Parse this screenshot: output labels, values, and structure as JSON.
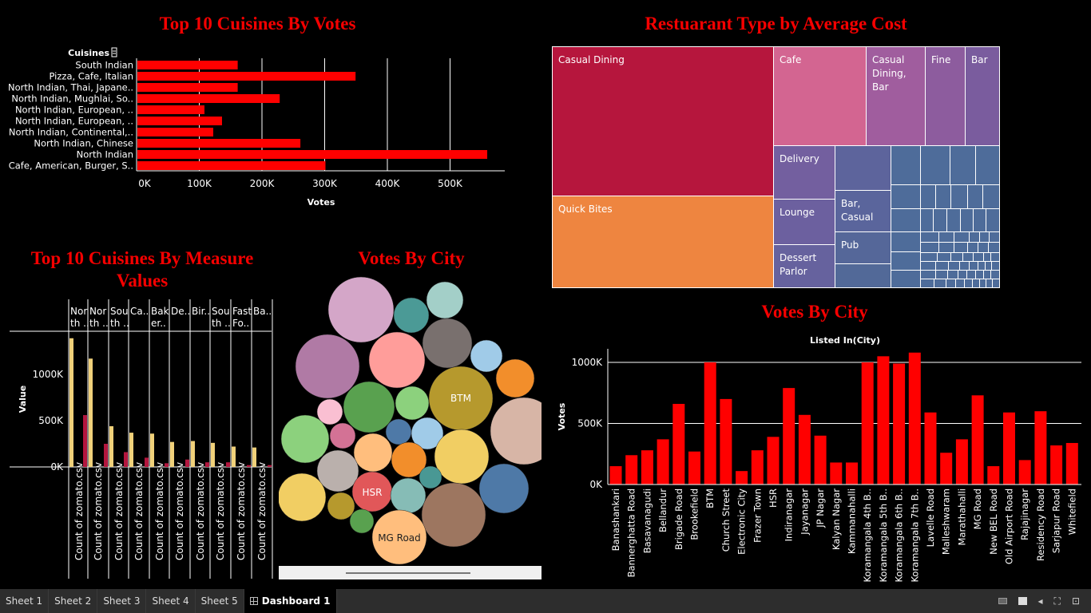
{
  "colors": {
    "accent": "#ff0000",
    "title": "#f50000",
    "background": "#000000"
  },
  "cuisines_chart": {
    "title": "Top 10 Cuisines By Votes",
    "row_header": "Cuisines",
    "filter_icon": "funnel-icon",
    "xlabel": "Votes",
    "ticks": [
      "0K",
      "100K",
      "200K",
      "300K",
      "400K",
      "500K"
    ]
  },
  "treemap": {
    "title": "Restuarant Type by Average Cost",
    "labels": {
      "casual_dining": "Casual Dining",
      "quick_bites": "Quick Bites",
      "cafe": "Cafe",
      "casual_dining_bar_1": "Casual",
      "casual_dining_bar_2": "Dining,",
      "casual_dining_bar_3": "Bar",
      "fine": "Fine",
      "bar": "Bar",
      "delivery": "Delivery",
      "lounge": "Lounge",
      "dessert_1": "Dessert",
      "dessert_2": "Parlor",
      "bar_casual_1": "Bar,",
      "bar_casual_2": "Casual",
      "pub": "Pub"
    }
  },
  "measure_chart": {
    "title_line1": "Top 10 Cuisines By Measure",
    "title_line2": "Values",
    "ylabel": "Value",
    "ticks": [
      "1000K",
      "500K",
      "0K"
    ],
    "headers": [
      [
        "Nor",
        "th .."
      ],
      [
        "Nor",
        "th .."
      ],
      [
        "Sou",
        "th .."
      ],
      [
        "Ca.."
      ],
      [
        "Bak",
        "er.."
      ],
      [
        "De.."
      ],
      [
        "Bir.."
      ],
      [
        "Sou",
        "th .."
      ],
      [
        "Fast",
        "Fo.."
      ],
      [
        "Ba.."
      ]
    ],
    "xlabel": "Count of zomato.csv"
  },
  "bubble_chart": {
    "title": "Votes By City",
    "labels": {
      "btm": "BTM",
      "hsr": "HSR",
      "mg_road": "MG Road"
    }
  },
  "city_chart": {
    "title": "Votes By City",
    "header": "Listed In(City)",
    "ylabel": "Votes",
    "ticks": [
      "1000K",
      "500K",
      "0K"
    ]
  },
  "chart_data": [
    {
      "type": "bar",
      "title": "Top 10 Cuisines By Votes",
      "xlabel": "Votes",
      "xlim": [
        0,
        600000
      ],
      "categories": [
        "South Indian",
        "Pizza, Cafe, Italian",
        "North Indian, Thai, Japane..",
        "North Indian, Mughlai, So..",
        "North Indian, European, ..",
        "North Indian, European, ..",
        "North Indian, Continental,..",
        "North Indian, Chinese",
        "North Indian",
        "Cafe, American, Burger, S.."
      ],
      "values": [
        160000,
        348000,
        160000,
        227000,
        107000,
        135000,
        121000,
        260000,
        558000,
        300000
      ],
      "orientation": "horizontal"
    },
    {
      "type": "bar",
      "title": "Top 10 Cuisines By Measure Values",
      "ylabel": "Value",
      "ylim": [
        0,
        1420000
      ],
      "categories": [
        "Nor th ..",
        "Nor th ..",
        "Sou th ..",
        "Ca..",
        "Bak er..",
        "De..",
        "Bir..",
        "Sou th ..",
        "Fast Fo..",
        "Ba.."
      ],
      "series": [
        {
          "values": [
            1390000,
            1170000,
            440000,
            370000,
            360000,
            270000,
            280000,
            260000,
            220000,
            210000
          ]
        },
        {
          "values": [
            560000,
            250000,
            160000,
            100000,
            40000,
            80000,
            50000,
            50000,
            20000,
            20000
          ]
        }
      ],
      "series_colors": [
        "#f0d17a",
        "#b3163e"
      ]
    },
    {
      "type": "bar",
      "title": "Votes By City",
      "xlabel": "Listed In(City)",
      "ylabel": "Votes",
      "ylim": [
        0,
        1100000
      ],
      "categories": [
        "Banashankari",
        "Bannerghatta Road",
        "Basavanagudi",
        "Bellandur",
        "Brigade Road",
        "Brookefield",
        "BTM",
        "Church Street",
        "Electronic City",
        "Frazer Town",
        "HSR",
        "Indiranagar",
        "Jayanagar",
        "JP Nagar",
        "Kalyan Nagar",
        "Kammanahalli",
        "Koramangala 4th B..",
        "Koramangala 5th B..",
        "Koramangala 6th B..",
        "Koramangala 7th B..",
        "Lavelle Road",
        "Malleshwaram",
        "Marathahalli",
        "MG Road",
        "New BEL Road",
        "Old Airport Road",
        "Rajajinagar",
        "Residency Road",
        "Sarjapur Road",
        "Whitefield"
      ],
      "values": [
        150000,
        240000,
        280000,
        370000,
        660000,
        270000,
        1000000,
        700000,
        110000,
        280000,
        390000,
        790000,
        570000,
        400000,
        180000,
        180000,
        1000000,
        1050000,
        990000,
        1080000,
        590000,
        260000,
        370000,
        730000,
        150000,
        590000,
        200000,
        600000,
        320000,
        340000
      ]
    }
  ],
  "tabs": [
    "Sheet 1",
    "Sheet 2",
    "Sheet 3",
    "Sheet 4",
    "Sheet 5",
    "Dashboard 1"
  ],
  "tab_tools": [
    "layout-icon",
    "present-icon",
    "back-icon",
    "fullscreen-icon",
    "share-icon"
  ]
}
